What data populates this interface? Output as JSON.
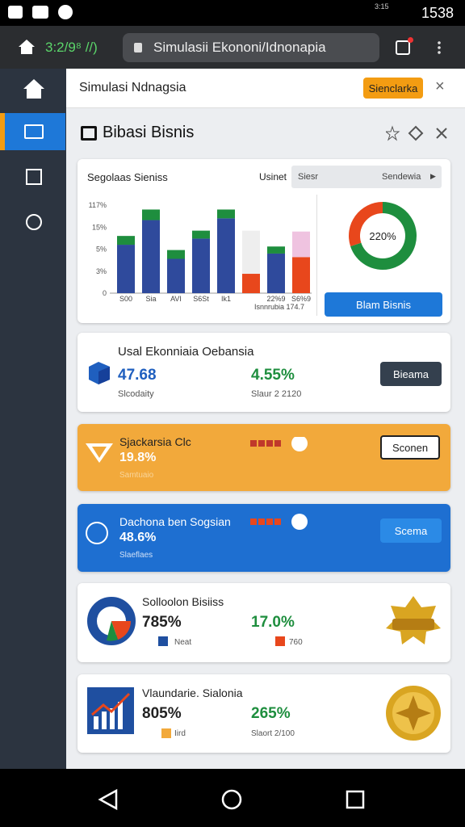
{
  "status_bar": {
    "network": "3:15",
    "time": "1538"
  },
  "browser": {
    "indicator": "3:2/9⁸ //)",
    "url": "Simulasii Ekononi/Idnonapia"
  },
  "panel": {
    "title": "Simulasi Ndnagsia",
    "button": "Sienclarka"
  },
  "section": {
    "title": "Bibasi Bisnis"
  },
  "chart_card": {
    "title": "Segolaas Sieniss",
    "filter_label": "Usinet",
    "select_placeholder": "Siesr",
    "select_value": "Sendewia",
    "y_labels": [
      "117%",
      "15%",
      "5%",
      "3%",
      "0"
    ],
    "ylim": [
      0,
      100
    ],
    "bars": [
      {
        "label": "S00",
        "segments": [
          {
            "value": 55,
            "color": "#2f4a9c"
          },
          {
            "value": 10,
            "color": "#1e8e3e"
          }
        ]
      },
      {
        "label": "Sia",
        "segments": [
          {
            "value": 83,
            "color": "#2f4a9c"
          },
          {
            "value": 12,
            "color": "#1e8e3e"
          }
        ]
      },
      {
        "label": "AVI",
        "segments": [
          {
            "value": 39,
            "color": "#2f4a9c"
          },
          {
            "value": 10,
            "color": "#1e8e3e"
          }
        ]
      },
      {
        "label": "S6St",
        "segments": [
          {
            "value": 62,
            "color": "#2f4a9c"
          },
          {
            "value": 9,
            "color": "#1e8e3e"
          }
        ]
      },
      {
        "label": "Ik1",
        "segments": [
          {
            "value": 85,
            "color": "#2f4a9c"
          },
          {
            "value": 10,
            "color": "#1e8e3e"
          }
        ]
      },
      {
        "label": null,
        "segments": [
          {
            "value": 22,
            "color": "#e8471c"
          },
          {
            "value": 49,
            "color": "#eeeeee"
          }
        ]
      },
      {
        "label": "22%9",
        "segments": [
          {
            "value": 45,
            "color": "#2f4a9c"
          },
          {
            "value": 8,
            "color": "#1e8e3e"
          }
        ]
      },
      {
        "label": "S6%9",
        "segments": [
          {
            "value": 41,
            "color": "#e8471c"
          },
          {
            "value": 29,
            "color": "#efc3e0"
          }
        ]
      }
    ],
    "footnote": "Isnnrubia 174.7",
    "donut": {
      "label": "220%",
      "segments": [
        {
          "value": 70,
          "color": "#1e8e3e"
        },
        {
          "value": 30,
          "color": "#e8471c"
        }
      ]
    },
    "button": "Blam Bisnis"
  },
  "cards": [
    {
      "title": "Usal Ekonniaia Oebansia",
      "primary": "47.68",
      "primary_note": "Slcodaity",
      "secondary": "4.55%",
      "secondary_note": "Slaur 2 2120",
      "button": "Bieama"
    },
    {
      "title": "Sjackarsia Clc",
      "primary": "19.8%",
      "primary_note": "Samtuaio",
      "button": "Sconen"
    },
    {
      "title": "Dachona ben Sogsian",
      "primary": "48.6%",
      "primary_note": "Slaeflaes",
      "button": "Scema"
    },
    {
      "title": "Solloolon Bisiiss",
      "primary": "785%",
      "primary_note": "Neat",
      "secondary": "17.0%",
      "secondary_note": "760"
    },
    {
      "title": "Vlaundarie. Sialonia",
      "primary": "805%",
      "primary_note": "Iird",
      "secondary": "265%",
      "secondary_note": "Slaort 2/100"
    }
  ]
}
